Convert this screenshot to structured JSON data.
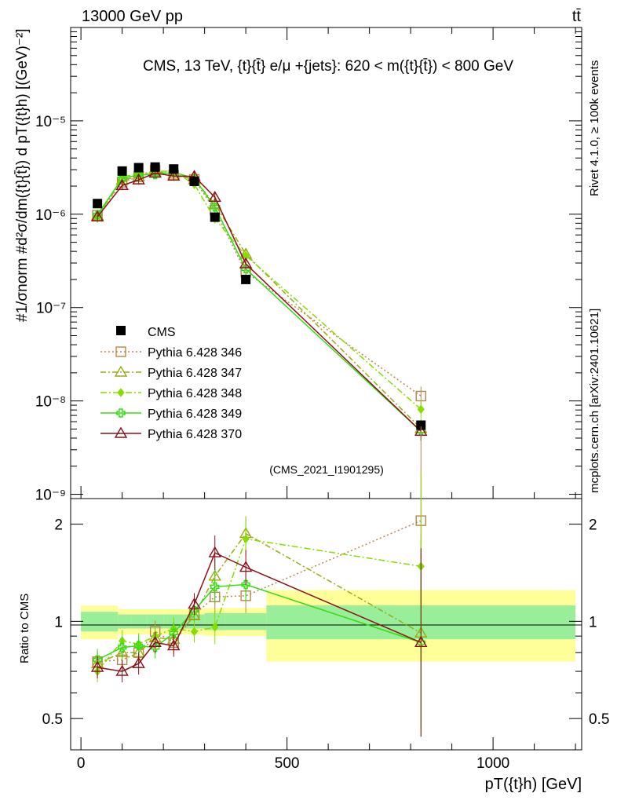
{
  "header": {
    "energy": "13000 GeV pp",
    "process": "tt̄",
    "title": "CMS, 13 TeV, {t}{t̄} e/μ +{jets}: 620 < m({t}{t̄}) < 800 GeV",
    "rivet": "Rivet 4.1.0, ≥ 100k events",
    "mcplots": "mcplots.cern.ch [arXiv:2401.10621]",
    "analysis": "(CMS_2021_I1901295)"
  },
  "axes": {
    "ylabel_main": "#1/σnorm #d²σ/dm({t}{t̄}) d pT({t}h) [(GeV)⁻²]",
    "ylabel_ratio": "Ratio to CMS",
    "xlabel": "pT({t}h) [GeV]",
    "y_ticks_main": [
      {
        "value": 1e-05,
        "label": "10⁻⁵"
      },
      {
        "value": 1e-06,
        "label": "10⁻⁶"
      },
      {
        "value": 1e-07,
        "label": "10⁻⁷"
      },
      {
        "value": 1e-08,
        "label": "10⁻⁸"
      },
      {
        "value": 1e-09,
        "label": "10⁻⁹"
      }
    ],
    "y_ticks_ratio": [
      {
        "value": 2,
        "label": "2"
      },
      {
        "value": 1,
        "label": "1"
      },
      {
        "value": 0.5,
        "label": "0.5"
      }
    ],
    "x_ticks": [
      {
        "value": 0,
        "label": "0"
      },
      {
        "value": 500,
        "label": "500"
      },
      {
        "value": 1000,
        "label": "1000"
      }
    ]
  },
  "chart_data": {
    "type": "scatter",
    "x_scale": "linear",
    "y_scale": "log",
    "xlim": [
      -25,
      1215
    ],
    "ylim_main": [
      9e-10,
      0.0001
    ],
    "ylim_ratio": [
      0.4,
      2.4
    ],
    "bins": [
      {
        "lo": 0,
        "hi": 90,
        "x": 40
      },
      {
        "lo": 90,
        "hi": 120,
        "x": 100
      },
      {
        "lo": 120,
        "hi": 160,
        "x": 140
      },
      {
        "lo": 160,
        "hi": 200,
        "x": 180
      },
      {
        "lo": 200,
        "hi": 250,
        "x": 225
      },
      {
        "lo": 250,
        "hi": 300,
        "x": 275
      },
      {
        "lo": 300,
        "hi": 350,
        "x": 325
      },
      {
        "lo": 350,
        "hi": 450,
        "x": 400
      },
      {
        "lo": 450,
        "hi": 1200,
        "x": 825
      }
    ],
    "data": {
      "name": "CMS",
      "values": [
        1.3e-06,
        2.9e-06,
        3.15e-06,
        3.2e-06,
        3.05e-06,
        2.25e-06,
        9.3e-07,
        2e-07,
        5.5e-09
      ],
      "band_inner": [
        0.07,
        0.05,
        0.05,
        0.05,
        0.05,
        0.05,
        0.06,
        0.06,
        0.12
      ],
      "band_outer": [
        0.12,
        0.09,
        0.09,
        0.09,
        0.09,
        0.09,
        0.1,
        0.1,
        0.25
      ]
    },
    "series": [
      {
        "name": "Pythia 6.428 346",
        "color": "#b8864b",
        "marker": "square",
        "dash": "2,3",
        "ratio": [
          0.75,
          0.76,
          0.8,
          0.93,
          0.86,
          1.05,
          1.19,
          1.2,
          2.05
        ]
      },
      {
        "name": "Pythia 6.428 347",
        "color": "#9aaa14",
        "marker": "triangle",
        "dash": "7,3,2,3",
        "ratio": [
          0.74,
          0.8,
          0.8,
          0.89,
          0.88,
          1.04,
          1.38,
          1.87,
          0.92
        ]
      },
      {
        "name": "Pythia 6.428 348",
        "color": "#88dd00",
        "marker": "diamond",
        "dash": "8,3,2,3",
        "ratio": [
          0.7,
          0.87,
          0.85,
          0.9,
          0.95,
          0.93,
          0.96,
          1.8,
          1.48
        ]
      },
      {
        "name": "Pythia 6.428 349",
        "color": "#33dd11",
        "marker": "cross",
        "dash": "",
        "ratio": [
          0.76,
          0.83,
          0.84,
          0.83,
          0.92,
          1.08,
          1.28,
          1.3,
          0.86
        ]
      },
      {
        "name": "Pythia 6.428 370",
        "color": "#8a1018",
        "marker": "triangle",
        "dash": "",
        "ratio": [
          0.72,
          0.7,
          0.74,
          0.86,
          0.84,
          1.13,
          1.63,
          1.47,
          0.86
        ]
      }
    ]
  }
}
